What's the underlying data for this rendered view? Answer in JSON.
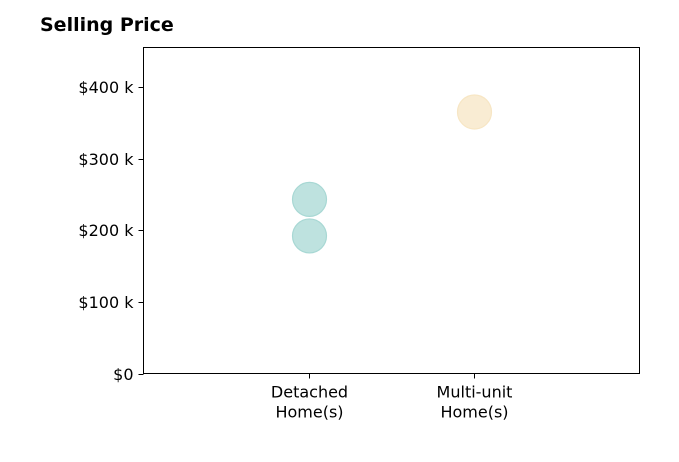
{
  "chart_data": {
    "type": "scatter",
    "title": "Selling Price",
    "xlabel": "",
    "ylabel": "",
    "categories": [
      [
        "Detached",
        "Home(s)"
      ],
      [
        "Multi-unit",
        "Home(s)"
      ]
    ],
    "ylim": [
      0,
      455
    ],
    "y_ticks": [
      0,
      100,
      200,
      300,
      400
    ],
    "y_tick_labels": [
      "$0",
      "$100 k",
      "$200 k",
      "$300 k",
      "$400 k"
    ],
    "grid": false,
    "points": [
      {
        "category": 0,
        "value": 243,
        "color": "#a8d8d4"
      },
      {
        "category": 0,
        "value": 192,
        "color": "#a8d8d4"
      },
      {
        "category": 1,
        "value": 365,
        "color": "#f7e6c4"
      }
    ]
  }
}
